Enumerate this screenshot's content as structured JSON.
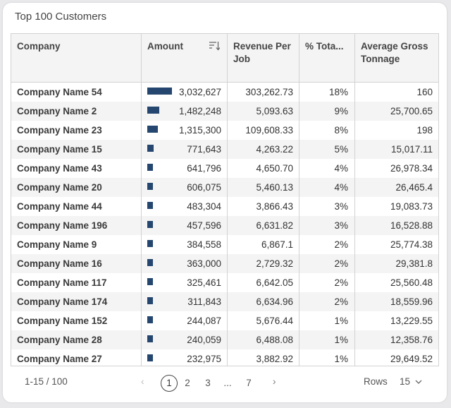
{
  "widget": {
    "title": "Top 100 Customers"
  },
  "columns": {
    "company": "Company",
    "amount": "Amount",
    "revenue_per_job": "Revenue Per Job",
    "pct_total": "% Tota...",
    "avg_gross_tonnage": "Average Gross Tonnage"
  },
  "colors": {
    "bar": "#24466f"
  },
  "rows": [
    {
      "company": "Company Name 54",
      "amount": "3,032,627",
      "amount_value": 3032627,
      "revenue": "303,262.73",
      "pct": "18%",
      "avg": "160"
    },
    {
      "company": "Company Name 2",
      "amount": "1,482,248",
      "amount_value": 1482248,
      "revenue": "5,093.63",
      "pct": "9%",
      "avg": "25,700.65"
    },
    {
      "company": "Company Name 23",
      "amount": "1,315,300",
      "amount_value": 1315300,
      "revenue": "109,608.33",
      "pct": "8%",
      "avg": "198"
    },
    {
      "company": "Company Name 15",
      "amount": "771,643",
      "amount_value": 771643,
      "revenue": "4,263.22",
      "pct": "5%",
      "avg": "15,017.11"
    },
    {
      "company": "Company Name 43",
      "amount": "641,796",
      "amount_value": 641796,
      "revenue": "4,650.70",
      "pct": "4%",
      "avg": "26,978.34"
    },
    {
      "company": "Company Name 20",
      "amount": "606,075",
      "amount_value": 606075,
      "revenue": "5,460.13",
      "pct": "4%",
      "avg": "26,465.4"
    },
    {
      "company": "Company Name 44",
      "amount": "483,304",
      "amount_value": 483304,
      "revenue": "3,866.43",
      "pct": "3%",
      "avg": "19,083.73"
    },
    {
      "company": "Company Name 196",
      "amount": "457,596",
      "amount_value": 457596,
      "revenue": "6,631.82",
      "pct": "3%",
      "avg": "16,528.88"
    },
    {
      "company": "Company Name 9",
      "amount": "384,558",
      "amount_value": 384558,
      "revenue": "6,867.1",
      "pct": "2%",
      "avg": "25,774.38"
    },
    {
      "company": "Company Name 16",
      "amount": "363,000",
      "amount_value": 363000,
      "revenue": "2,729.32",
      "pct": "2%",
      "avg": "29,381.8"
    },
    {
      "company": "Company Name 117",
      "amount": "325,461",
      "amount_value": 325461,
      "revenue": "6,642.05",
      "pct": "2%",
      "avg": "25,560.48"
    },
    {
      "company": "Company Name 174",
      "amount": "311,843",
      "amount_value": 311843,
      "revenue": "6,634.96",
      "pct": "2%",
      "avg": "18,559.96"
    },
    {
      "company": "Company Name 152",
      "amount": "244,087",
      "amount_value": 244087,
      "revenue": "5,676.44",
      "pct": "1%",
      "avg": "13,229.55"
    },
    {
      "company": "Company Name 28",
      "amount": "240,059",
      "amount_value": 240059,
      "revenue": "6,488.08",
      "pct": "1%",
      "avg": "12,358.76"
    },
    {
      "company": "Company Name 27",
      "amount": "232,975",
      "amount_value": 232975,
      "revenue": "3,882.92",
      "pct": "1%",
      "avg": "29,649.52"
    }
  ],
  "pager": {
    "range": "1-15 / 100",
    "pages": [
      "1",
      "2",
      "3",
      "...",
      "7"
    ],
    "current_page": "1",
    "rows_label": "Rows",
    "rows_value": "15"
  }
}
